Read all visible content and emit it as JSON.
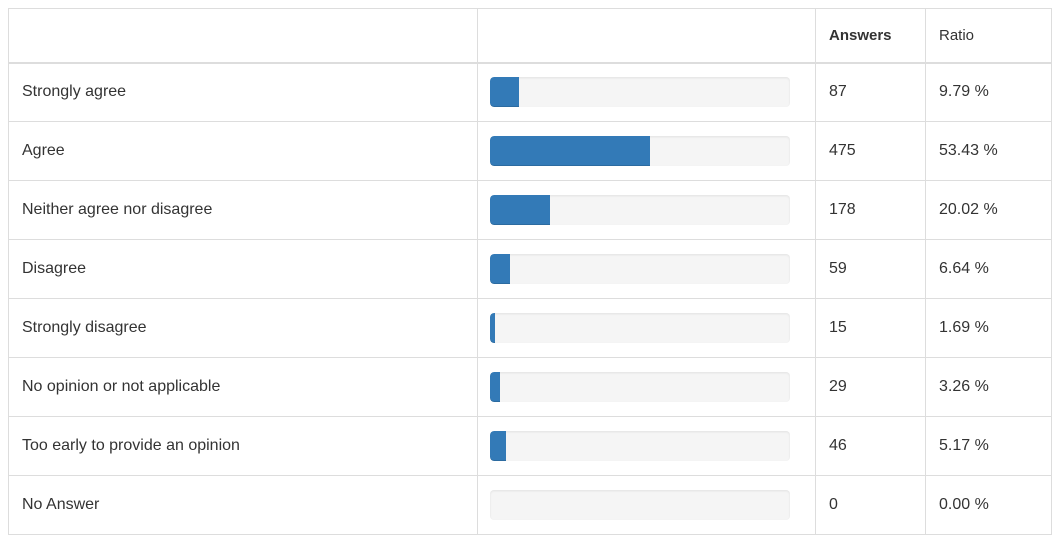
{
  "table": {
    "headers": {
      "label": "",
      "bar": "",
      "answers": "Answers",
      "ratio": "Ratio"
    },
    "accent_color": "#337ab7",
    "rows": [
      {
        "label": "Strongly agree",
        "answers": "87",
        "ratio": "9.79 %",
        "percent": 9.79
      },
      {
        "label": "Agree",
        "answers": "475",
        "ratio": "53.43 %",
        "percent": 53.43
      },
      {
        "label": "Neither agree nor disagree",
        "answers": "178",
        "ratio": "20.02 %",
        "percent": 20.02
      },
      {
        "label": "Disagree",
        "answers": "59",
        "ratio": "6.64 %",
        "percent": 6.64
      },
      {
        "label": "Strongly disagree",
        "answers": "15",
        "ratio": "1.69 %",
        "percent": 1.69
      },
      {
        "label": "No opinion or not applicable",
        "answers": "29",
        "ratio": "3.26 %",
        "percent": 3.26
      },
      {
        "label": "Too early to provide an opinion",
        "answers": "46",
        "ratio": "5.17 %",
        "percent": 5.17
      },
      {
        "label": "No Answer",
        "answers": "0",
        "ratio": "0.00 %",
        "percent": 0
      }
    ]
  }
}
